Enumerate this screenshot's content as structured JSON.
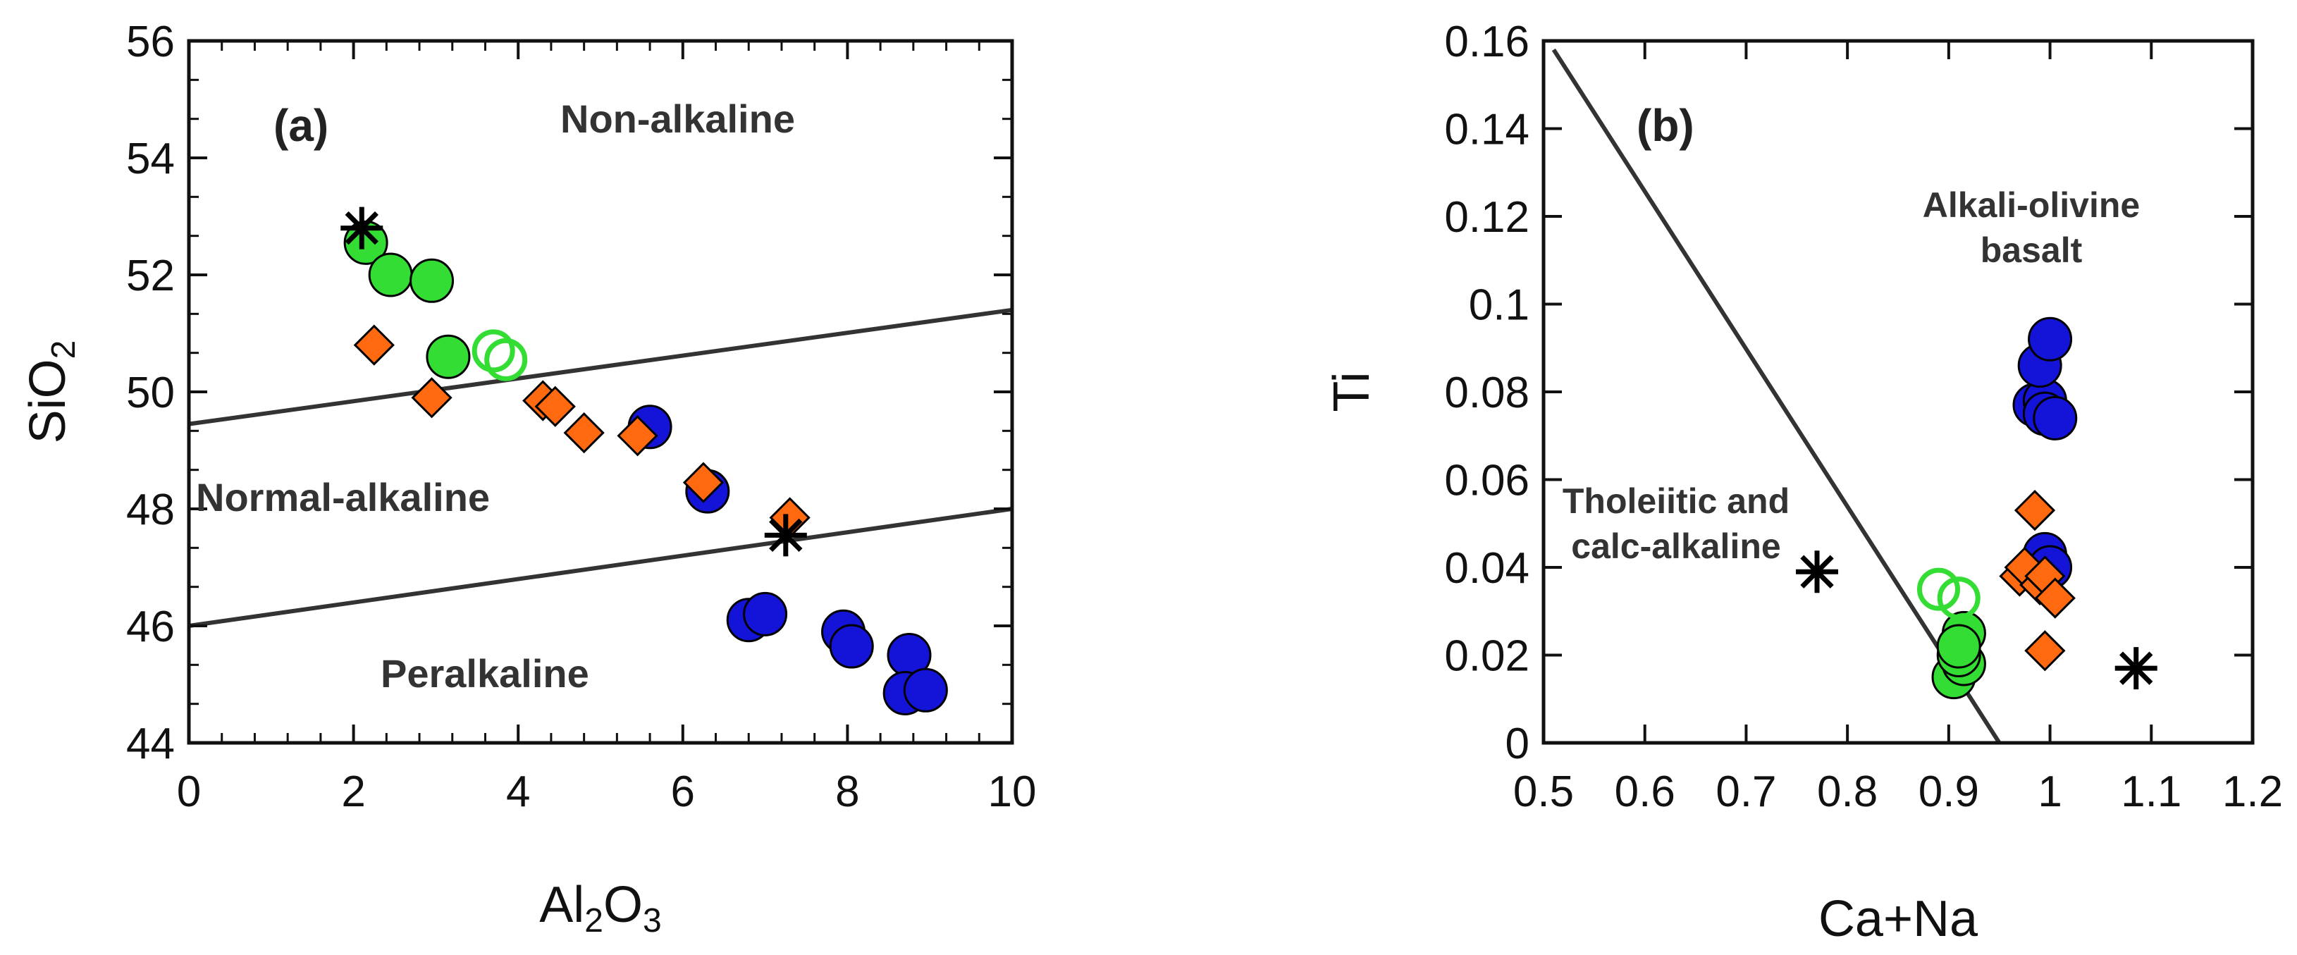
{
  "chart_data": [
    {
      "panel": "(a)",
      "type": "scatter",
      "xlabel": {
        "base": "Al",
        "sub1": "2",
        "mid": "O",
        "sub2": "3"
      },
      "ylabel": {
        "base": "SiO",
        "sub": "2"
      },
      "xlim": [
        0,
        10
      ],
      "ylim": [
        44,
        56
      ],
      "xticks": [
        "0",
        "2",
        "4",
        "6",
        "8",
        "10"
      ],
      "yticks": [
        "44",
        "46",
        "48",
        "50",
        "52",
        "54",
        "56"
      ],
      "regions": {
        "upper": "Non-alkaline",
        "middle": "Normal-alkaline",
        "lower": "Peralkaline"
      },
      "boundaries": [
        {
          "x": [
            0,
            10
          ],
          "y": [
            49.45,
            51.4
          ]
        },
        {
          "x": [
            0,
            10
          ],
          "y": [
            46.0,
            48.0
          ]
        }
      ],
      "series": [
        {
          "name": "blue",
          "marker": "circle-filled",
          "color": "#1414d8",
          "points": [
            [
              5.6,
              49.4
            ],
            [
              6.3,
              48.3
            ],
            [
              6.8,
              46.1
            ],
            [
              7.0,
              46.2
            ],
            [
              7.95,
              45.9
            ],
            [
              8.05,
              45.65
            ],
            [
              8.75,
              45.5
            ],
            [
              8.7,
              44.85
            ],
            [
              8.95,
              44.9
            ]
          ]
        },
        {
          "name": "green",
          "marker": "circle-filled",
          "color": "#33dd33",
          "points": [
            [
              2.15,
              52.55
            ],
            [
              2.45,
              52.0
            ],
            [
              2.95,
              51.9
            ],
            [
              3.15,
              50.6
            ]
          ]
        },
        {
          "name": "green-open",
          "marker": "circle-open",
          "color": "#33dd33",
          "points": [
            [
              3.7,
              50.7
            ],
            [
              3.85,
              50.55
            ]
          ]
        },
        {
          "name": "orange",
          "marker": "diamond",
          "color": "#ff6a10",
          "points": [
            [
              2.25,
              50.8
            ],
            [
              2.95,
              49.9
            ],
            [
              4.3,
              49.85
            ],
            [
              4.45,
              49.75
            ],
            [
              4.8,
              49.3
            ],
            [
              5.45,
              49.25
            ],
            [
              6.25,
              48.45
            ],
            [
              7.3,
              47.85
            ]
          ]
        },
        {
          "name": "star",
          "marker": "asterisk",
          "color": "#000000",
          "points": [
            [
              2.1,
              52.8
            ],
            [
              7.25,
              47.55
            ]
          ]
        }
      ]
    },
    {
      "panel": "(b)",
      "type": "scatter",
      "xlabel": "Ca+Na",
      "ylabel": "Ti",
      "xlim": [
        0.5,
        1.2
      ],
      "ylim": [
        0,
        0.16
      ],
      "xticks": [
        "0.5",
        "0.6",
        "0.7",
        "0.8",
        "0.9",
        "1",
        "1.1",
        "1.2"
      ],
      "yticks": [
        "0",
        "0.02",
        "0.04",
        "0.06",
        "0.08",
        "0.1",
        "0.12",
        "0.14",
        "0.16"
      ],
      "regions": {
        "right_line1": "Alkali-olivine",
        "right_line2": "basalt",
        "left_line1": "Tholeiitic and",
        "left_line2": "calc-alkaline"
      },
      "boundaries": [
        {
          "x": [
            0.51,
            0.95
          ],
          "y": [
            0.158,
            0.0
          ]
        }
      ],
      "series": [
        {
          "name": "blue",
          "marker": "circle-filled",
          "color": "#1414d8",
          "points": [
            [
              0.985,
              0.077
            ],
            [
              0.995,
              0.078
            ],
            [
              0.99,
              0.086
            ],
            [
              1.0,
              0.092
            ],
            [
              0.995,
              0.075
            ],
            [
              1.005,
              0.074
            ],
            [
              0.995,
              0.043
            ],
            [
              1.0,
              0.04
            ]
          ]
        },
        {
          "name": "green",
          "marker": "circle-filled",
          "color": "#33dd33",
          "points": [
            [
              0.905,
              0.015
            ],
            [
              0.915,
              0.018
            ],
            [
              0.91,
              0.02
            ],
            [
              0.915,
              0.025
            ],
            [
              0.91,
              0.022
            ]
          ]
        },
        {
          "name": "green-open",
          "marker": "circle-open",
          "color": "#33dd33",
          "points": [
            [
              0.89,
              0.035
            ],
            [
              0.91,
              0.033
            ]
          ]
        },
        {
          "name": "orange",
          "marker": "diamond",
          "color": "#ff6a10",
          "points": [
            [
              0.985,
              0.053
            ],
            [
              0.97,
              0.038
            ],
            [
              0.975,
              0.04
            ],
            [
              0.99,
              0.036
            ],
            [
              0.995,
              0.038
            ],
            [
              1.005,
              0.033
            ],
            [
              0.995,
              0.021
            ]
          ]
        },
        {
          "name": "star",
          "marker": "asterisk",
          "color": "#000000",
          "points": [
            [
              0.77,
              0.039
            ],
            [
              1.085,
              0.017
            ]
          ]
        }
      ]
    }
  ]
}
